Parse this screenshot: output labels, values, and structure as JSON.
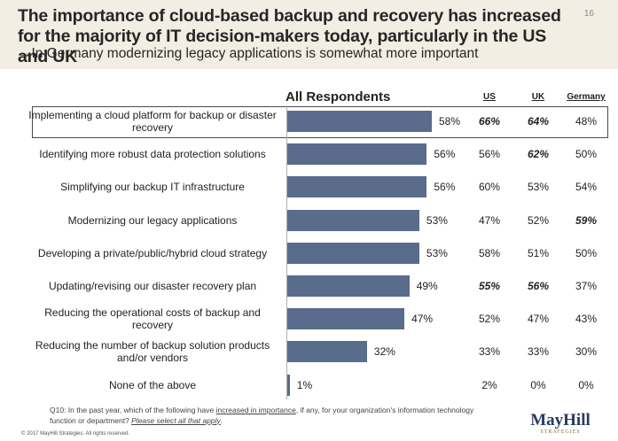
{
  "header": {
    "title": "The importance of cloud-based backup and recovery has increased for the majority of IT decision-makers today, particularly in the US and UK",
    "subtitle": "→In Germany modernizing legacy applications is somewhat more important",
    "page_number": "16"
  },
  "columns": {
    "all": "All Respondents",
    "us": "US",
    "uk": "UK",
    "germany": "Germany"
  },
  "chart_data": {
    "type": "bar",
    "orientation": "horizontal",
    "title": "All Respondents",
    "categories": [
      "Implementing a cloud platform for backup or disaster recovery",
      "Identifying more robust data protection solutions",
      "Simplifying our backup IT infrastructure",
      "Modernizing our legacy applications",
      "Developing a private/public/hybrid cloud strategy",
      "Updating/revising our disaster recovery plan",
      "Reducing the operational costs of backup and recovery",
      "Reducing the number of backup solution products and/or vendors",
      "None of the above"
    ],
    "values": [
      58,
      56,
      56,
      53,
      53,
      49,
      47,
      32,
      1
    ],
    "value_labels": [
      "58%",
      "56%",
      "56%",
      "53%",
      "53%",
      "49%",
      "47%",
      "32%",
      "1%"
    ],
    "xlim": [
      0,
      100
    ],
    "bar_color": "#5a6c8c",
    "grid": false,
    "highlighted_row": 0,
    "table": {
      "us": [
        "66%",
        "56%",
        "60%",
        "47%",
        "58%",
        "55%",
        "52%",
        "33%",
        "2%"
      ],
      "uk": [
        "64%",
        "62%",
        "53%",
        "52%",
        "51%",
        "56%",
        "47%",
        "33%",
        "0%"
      ],
      "germany": [
        "48%",
        "50%",
        "54%",
        "59%",
        "50%",
        "37%",
        "43%",
        "30%",
        "0%"
      ],
      "us_bold": [
        true,
        false,
        false,
        false,
        false,
        true,
        false,
        false,
        false
      ],
      "uk_bold": [
        true,
        true,
        false,
        false,
        false,
        true,
        false,
        false,
        false
      ],
      "germany_bold": [
        false,
        false,
        false,
        true,
        false,
        false,
        false,
        false,
        false
      ]
    }
  },
  "footnote": {
    "part1": "Q10: In the past year, which of the following have ",
    "underlined": "increased in importance",
    "part2": ", if any, for your organization's information technology function or department? ",
    "italic_underlined": "Please select all that apply",
    "part3": "."
  },
  "copyright": "© 2017 MayHill Strategies. All rights reserved.",
  "logo": {
    "name": "MayHill",
    "tagline": "STRATEGIES"
  }
}
